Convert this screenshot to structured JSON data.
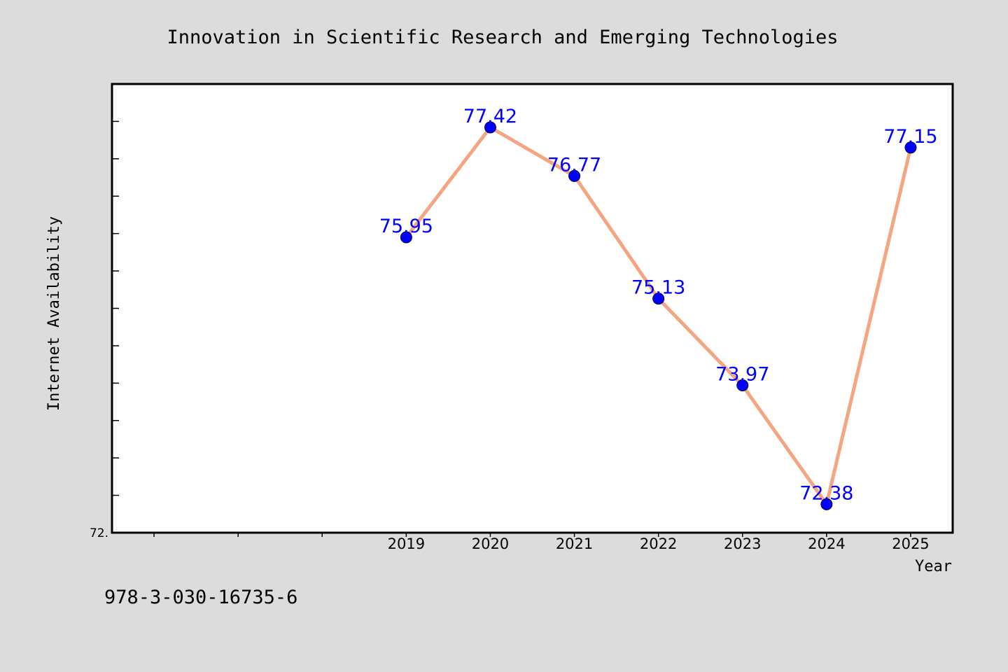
{
  "colors": {
    "page_background": "#dcdcdc",
    "plot_background": "#ffffff",
    "line": "#f4a582",
    "marker": "#0000ff",
    "data_label": "#0000ff"
  },
  "footer": {
    "isbn": "978-3-030-16735-6"
  },
  "chart_data": {
    "type": "line",
    "title": "Innovation in Scientific Research and Emerging Technologies",
    "xlabel": "Year",
    "ylabel": "Internet Availability",
    "x_tick_labels": [
      "2019",
      "2020",
      "2021",
      "2022",
      "2023",
      "2024",
      "2025"
    ],
    "y_tick_label_visible": "72.",
    "xlim": [
      2015.5,
      2025.5
    ],
    "ylim": [
      72.0,
      78.0
    ],
    "grid": false,
    "legend": "none",
    "series": [
      {
        "x": [
          2019,
          2020,
          2021,
          2022,
          2023,
          2024,
          2025
        ],
        "values": [
          75.95,
          77.42,
          76.77,
          75.13,
          73.97,
          72.38,
          77.15
        ],
        "labels": [
          "75.95",
          "77.42",
          "76.77",
          "75.13",
          "73.97",
          "72.38",
          "77.15"
        ]
      }
    ]
  }
}
